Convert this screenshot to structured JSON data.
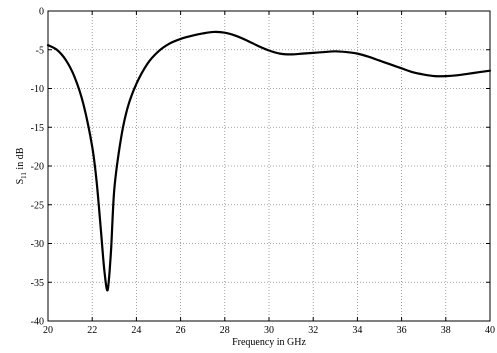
{
  "chart_data": {
    "type": "line",
    "title": "",
    "xlabel": "Frequency in GHz",
    "ylabel": {
      "main": "S",
      "sub": "11",
      "rest": " in dB"
    },
    "xlim": [
      20,
      40
    ],
    "ylim": [
      -40,
      0
    ],
    "xticks": [
      "20",
      "22",
      "24",
      "26",
      "28",
      "30",
      "32",
      "34",
      "36",
      "38",
      "40"
    ],
    "yticks": [
      "0",
      "-5",
      "-10",
      "-15",
      "-20",
      "-25",
      "-30",
      "-35",
      "-40"
    ],
    "grid": "dotted",
    "legend": "none",
    "line_color": "#000000",
    "series": [
      {
        "x": [
          20,
          20.4,
          20.8,
          21.2,
          21.6,
          22.0,
          22.2,
          22.4,
          22.55,
          22.7,
          22.85,
          23.0,
          23.3,
          23.6,
          24.0,
          24.5,
          25.0,
          25.5,
          26.0,
          26.5,
          27.0,
          27.5,
          28.0,
          28.5,
          29.0,
          29.5,
          30.0,
          30.5,
          31.0,
          31.5,
          32.0,
          32.5,
          33.0,
          33.5,
          34.0,
          34.5,
          35.0,
          35.5,
          36.0,
          36.5,
          37.0,
          37.5,
          38.0,
          38.5,
          39.0,
          39.5,
          40.0
        ],
        "y": [
          -4.4,
          -5.0,
          -6.3,
          -8.5,
          -12.0,
          -17.5,
          -22.0,
          -28.5,
          -33.5,
          -36.0,
          -31.0,
          -23.0,
          -16.5,
          -12.5,
          -9.4,
          -6.8,
          -5.2,
          -4.2,
          -3.6,
          -3.2,
          -2.9,
          -2.7,
          -2.8,
          -3.2,
          -3.8,
          -4.5,
          -5.1,
          -5.5,
          -5.6,
          -5.5,
          -5.4,
          -5.3,
          -5.2,
          -5.3,
          -5.5,
          -5.9,
          -6.4,
          -6.9,
          -7.4,
          -7.9,
          -8.2,
          -8.4,
          -8.4,
          -8.3,
          -8.1,
          -7.9,
          -7.7
        ]
      }
    ]
  }
}
